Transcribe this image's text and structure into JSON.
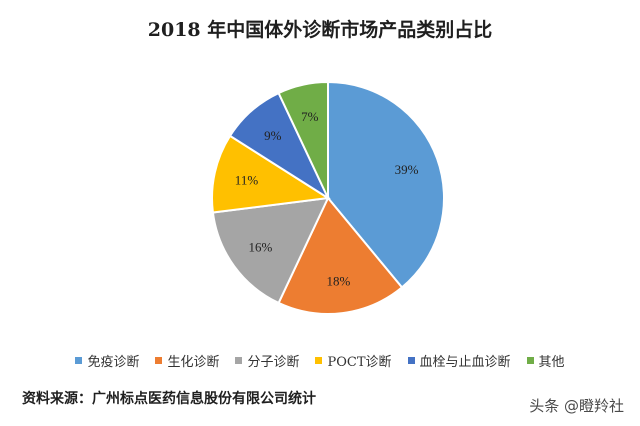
{
  "chart_data": {
    "type": "pie",
    "title": "2018 年中国体外诊断市场产品类别占比",
    "slices": [
      {
        "name": "免疫诊断",
        "value": 39,
        "label": "39%",
        "color": "#5b9bd5"
      },
      {
        "name": "生化诊断",
        "value": 18,
        "label": "18%",
        "color": "#ed7d31"
      },
      {
        "name": "分子诊断",
        "value": 16,
        "label": "16%",
        "color": "#a5a5a5"
      },
      {
        "name": "POCT诊断",
        "value": 11,
        "label": "11%",
        "color": "#ffc000"
      },
      {
        "name": "血栓与止血诊断",
        "value": 9,
        "label": "9%",
        "color": "#4472c4"
      },
      {
        "name": "其他",
        "value": 7,
        "label": "7%",
        "color": "#70ad47"
      }
    ],
    "legend_position": "bottom"
  },
  "source": "资料来源：广州标点医药信息股份有限公司统计",
  "watermark": "头条 @瞪羚社"
}
